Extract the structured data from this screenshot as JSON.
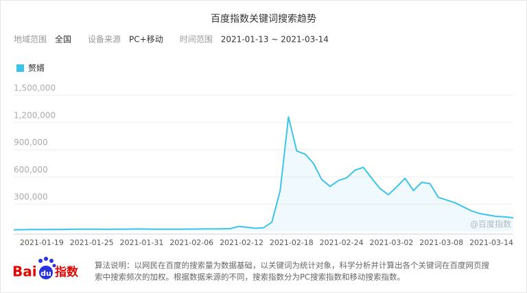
{
  "chart_data": {
    "type": "area",
    "title": "百度指数关键词搜索趋势",
    "filters": [
      {
        "label": "地域范围",
        "value": "全国"
      },
      {
        "label": "设备来源",
        "value": "PC+移动"
      },
      {
        "label": "时间范围",
        "value": "2021-01-13 ~ 2021-03-14"
      }
    ],
    "categories": [
      null,
      null,
      null,
      null,
      null,
      null,
      "2021-01-19",
      null,
      null,
      null,
      null,
      null,
      "2021-01-25",
      null,
      null,
      null,
      null,
      null,
      "2021-01-31",
      null,
      null,
      null,
      null,
      null,
      "2021-02-06",
      null,
      null,
      null,
      null,
      null,
      "2021-02-12",
      null,
      null,
      null,
      null,
      null,
      "2021-02-18",
      null,
      null,
      null,
      null,
      null,
      "2021-02-24",
      null,
      null,
      null,
      null,
      null,
      "2021-03-02",
      null,
      null,
      null,
      null,
      null,
      "2021-03-08",
      null,
      null,
      null,
      null,
      null,
      "2021-03-14"
    ],
    "series": [
      {
        "name": "赘婿",
        "color": "#3bc3ec",
        "values": [
          18000,
          19000,
          20000,
          20000,
          21000,
          22000,
          22000,
          23000,
          24000,
          25000,
          24000,
          23000,
          24000,
          25000,
          26000,
          27000,
          26000,
          25000,
          24000,
          25000,
          25000,
          26000,
          26000,
          27000,
          27000,
          28000,
          30000,
          55000,
          45000,
          35000,
          40000,
          100000,
          450000,
          1260000,
          885000,
          850000,
          750000,
          570000,
          495000,
          560000,
          590000,
          675000,
          705000,
          585000,
          470000,
          405000,
          490000,
          585000,
          450000,
          540000,
          525000,
          375000,
          345000,
          315000,
          270000,
          225000,
          195000,
          180000,
          165000,
          160000,
          150000
        ]
      }
    ],
    "ylim": [
      0,
      1500000
    ],
    "yticks": [
      {
        "value": 300000,
        "label": "300,000"
      },
      {
        "value": 600000,
        "label": "600,000"
      },
      {
        "value": 900000,
        "label": "900,000"
      },
      {
        "value": 1200000,
        "label": "1,200,000"
      },
      {
        "value": 1500000,
        "label": "1,500,000"
      }
    ],
    "grid": true,
    "watermark": "@百度指数"
  },
  "logo": {
    "bai": "Bai",
    "du": "du",
    "index": "指数"
  },
  "footer": {
    "line1": "算法说明：以网民在百度的搜索量为数据基础，以关键词为统计对象，科学分析并计算出各个关键词在百度网页搜",
    "line2": "索中搜索频次的加权。根据数据来源的不同，搜索指数分为PC搜索指数和移动搜索指数。"
  }
}
